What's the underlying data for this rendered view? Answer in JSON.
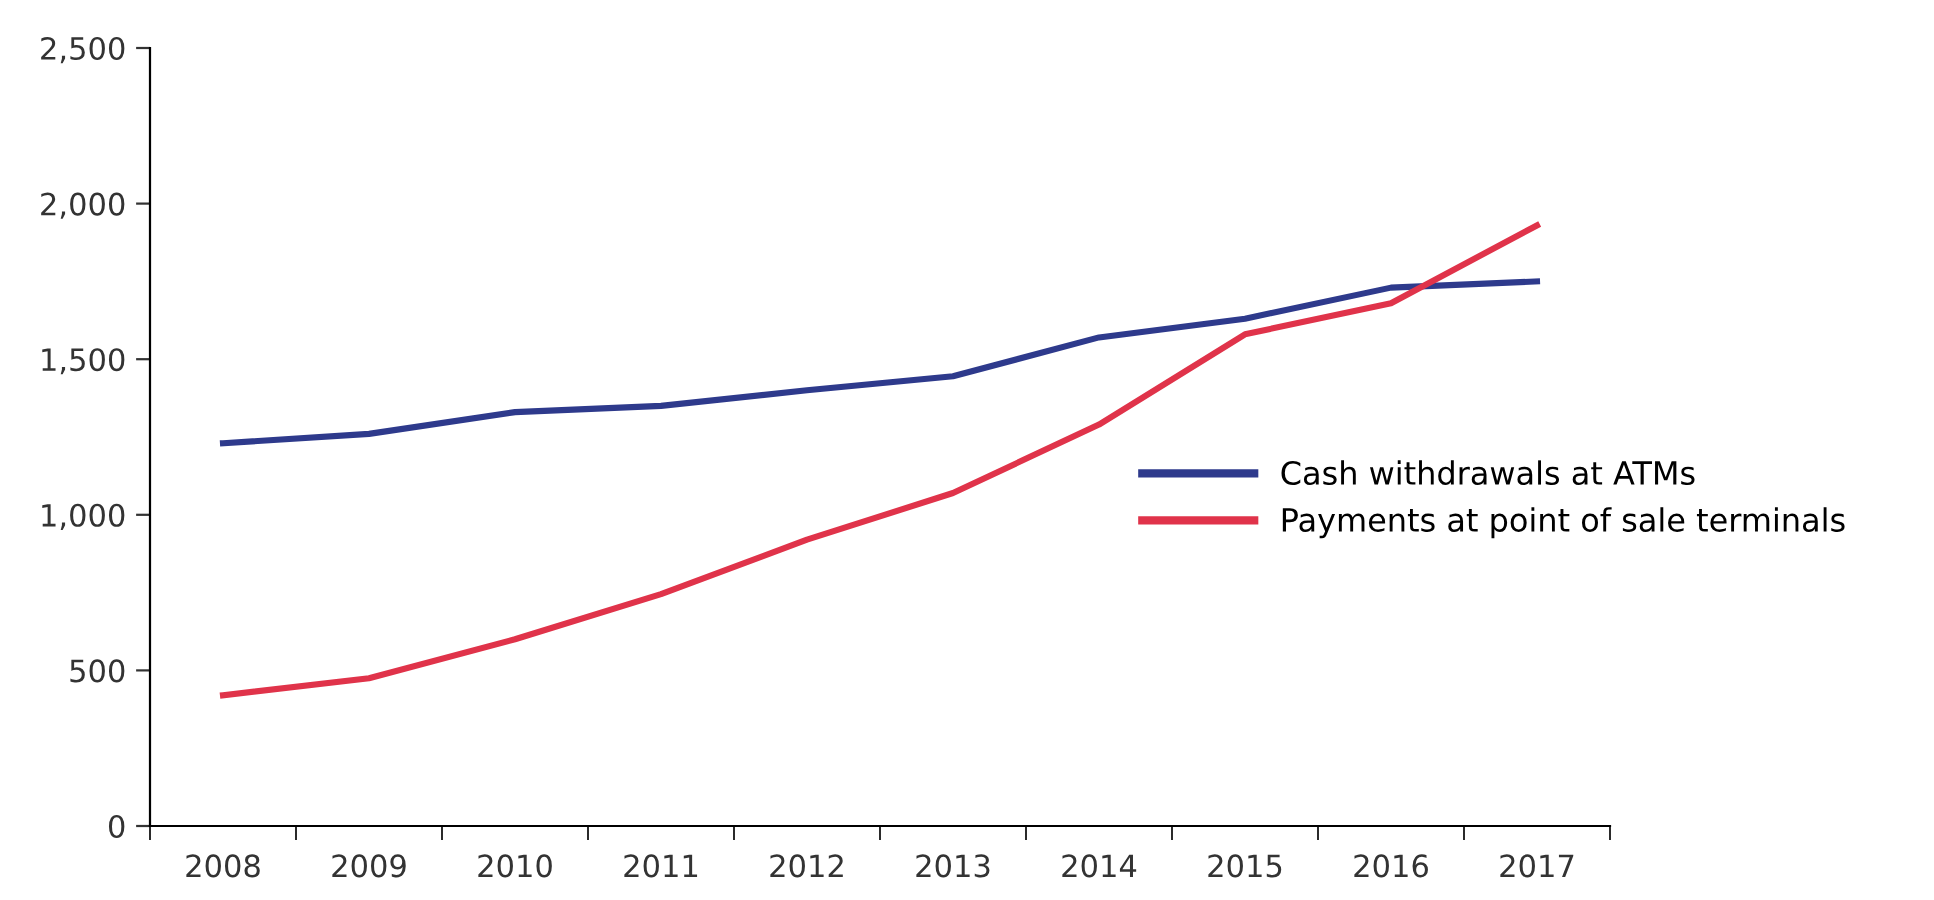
{
  "chart_data": {
    "type": "line",
    "categories": [
      "2008",
      "2009",
      "2010",
      "2011",
      "2012",
      "2013",
      "2014",
      "2015",
      "2016",
      "2017"
    ],
    "series": [
      {
        "name": "Cash withdrawals at ATMs",
        "color": "#2e3a8c",
        "values": [
          1230,
          1260,
          1330,
          1350,
          1400,
          1445,
          1570,
          1630,
          1730,
          1750
        ]
      },
      {
        "name": "Payments at point of sale terminals",
        "color": "#e0334a",
        "values": [
          420,
          475,
          600,
          745,
          920,
          1070,
          1290,
          1580,
          1680,
          1930
        ]
      }
    ],
    "ylim": [
      0,
      2500
    ],
    "yticks": [
      {
        "value": 0,
        "label": "0"
      },
      {
        "value": 500,
        "label": "500"
      },
      {
        "value": 1000,
        "label": "1,000"
      },
      {
        "value": 1500,
        "label": "1,500"
      },
      {
        "value": 2000,
        "label": "2,000"
      },
      {
        "value": 2500,
        "label": "2,500"
      }
    ],
    "grid": false,
    "legend": "right",
    "marker": "none",
    "line_style": "solid"
  }
}
